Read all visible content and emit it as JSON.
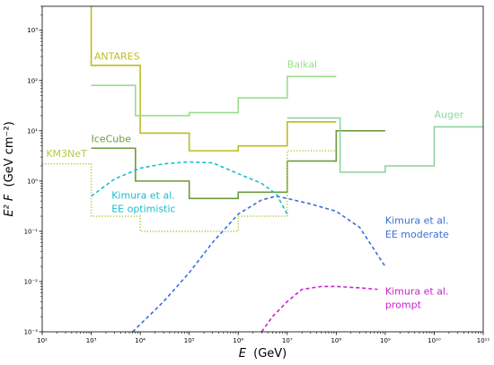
{
  "chart_data": {
    "type": "line",
    "xlabel_math": "E",
    "xlabel_unit": "(GeV)",
    "ylabel_math": "E² F",
    "ylabel_unit": "(GeV cm⁻²)",
    "xscale": "log",
    "yscale": "log",
    "xlim": [
      100,
      100000000000
    ],
    "ylim": [
      0.001,
      3000
    ],
    "x_ticks": [
      {
        "value": 100,
        "label": "10²"
      },
      {
        "value": 1000,
        "label": "10³"
      },
      {
        "value": 10000,
        "label": "10⁴"
      },
      {
        "value": 100000,
        "label": "10⁵"
      },
      {
        "value": 1000000,
        "label": "10⁶"
      },
      {
        "value": 10000000,
        "label": "10⁷"
      },
      {
        "value": 100000000,
        "label": "10⁸"
      },
      {
        "value": 1000000000,
        "label": "10⁹"
      },
      {
        "value": 10000000000,
        "label": "10¹⁰"
      },
      {
        "value": 100000000000,
        "label": "10¹¹"
      }
    ],
    "y_ticks": [
      {
        "value": 0.001,
        "label": "10⁻³"
      },
      {
        "value": 0.01,
        "label": "10⁻²"
      },
      {
        "value": 0.1,
        "label": "10⁻¹"
      },
      {
        "value": 1,
        "label": "10⁰"
      },
      {
        "value": 10,
        "label": "10¹"
      },
      {
        "value": 100,
        "label": "10²"
      },
      {
        "value": 1000,
        "label": "10³"
      }
    ],
    "series": [
      {
        "name": "ANTARES",
        "style": "solid",
        "color": "#bcbd22",
        "points": [
          [
            1000,
            3000
          ],
          [
            1000,
            200
          ],
          [
            10000,
            200
          ],
          [
            10000,
            9
          ],
          [
            100000,
            9
          ],
          [
            100000,
            4
          ],
          [
            1000000,
            4
          ],
          [
            1000000,
            5
          ],
          [
            10000000,
            5
          ],
          [
            10000000,
            15
          ],
          [
            100000000,
            15
          ]
        ]
      },
      {
        "name": "Baikal",
        "style": "solid",
        "color": "#98df8a",
        "points": [
          [
            1000,
            80
          ],
          [
            8000,
            80
          ],
          [
            8000,
            20
          ],
          [
            100000,
            20
          ],
          [
            100000,
            23
          ],
          [
            1000000,
            23
          ],
          [
            1000000,
            45
          ],
          [
            10000000,
            45
          ],
          [
            10000000,
            120
          ],
          [
            100000000,
            120
          ]
        ]
      },
      {
        "name": "IceCube",
        "style": "solid",
        "color": "#6b9a3c",
        "points": [
          [
            1000,
            4.5
          ],
          [
            8000,
            4.5
          ],
          [
            8000,
            1
          ],
          [
            100000,
            1
          ],
          [
            100000,
            0.45
          ],
          [
            1000000,
            0.45
          ],
          [
            1000000,
            0.6
          ],
          [
            10000000,
            0.6
          ],
          [
            10000000,
            2.5
          ],
          [
            100000000,
            2.5
          ],
          [
            100000000,
            10
          ],
          [
            1000000000,
            10
          ]
        ]
      },
      {
        "name": "KM3NeT",
        "style": "dotted",
        "color": "#b5cc3e",
        "points": [
          [
            100,
            2.2
          ],
          [
            1000,
            2.2
          ],
          [
            1000,
            0.2
          ],
          [
            10000,
            0.2
          ],
          [
            10000,
            0.1
          ],
          [
            1000000,
            0.1
          ],
          [
            1000000,
            0.2
          ],
          [
            10000000,
            0.2
          ],
          [
            10000000,
            4
          ],
          [
            100000000,
            4
          ]
        ]
      },
      {
        "name": "Auger",
        "style": "solid",
        "color": "#8ed4a0",
        "points": [
          [
            10000000,
            18
          ],
          [
            120000000,
            18
          ],
          [
            120000000,
            1.5
          ],
          [
            1000000000,
            1.5
          ],
          [
            1000000000,
            2
          ],
          [
            10000000000,
            2
          ],
          [
            10000000000,
            12
          ],
          [
            100000000000,
            12
          ]
        ]
      },
      {
        "name": "Kimura et al. EE optimistic",
        "style": "dashed",
        "color": "#17becf",
        "points": [
          [
            1000,
            0.5
          ],
          [
            3000,
            1.1
          ],
          [
            10000,
            1.8
          ],
          [
            30000,
            2.2
          ],
          [
            100000,
            2.4
          ],
          [
            300000,
            2.3
          ],
          [
            1000000,
            1.4
          ],
          [
            3000000,
            0.9
          ],
          [
            6000000,
            0.55
          ],
          [
            10000000,
            0.22
          ]
        ]
      },
      {
        "name": "Kimura et al. EE moderate",
        "style": "dashed",
        "color": "#3a6fd8",
        "points": [
          [
            7000,
            0.001
          ],
          [
            30000,
            0.004
          ],
          [
            100000,
            0.015
          ],
          [
            300000,
            0.06
          ],
          [
            1000000,
            0.22
          ],
          [
            3000000,
            0.42
          ],
          [
            6000000,
            0.5
          ],
          [
            10000000,
            0.45
          ],
          [
            30000000,
            0.35
          ],
          [
            100000000,
            0.25
          ],
          [
            300000000,
            0.12
          ],
          [
            1000000000,
            0.02
          ]
        ]
      },
      {
        "name": "Kimura et al. prompt",
        "style": "dashed",
        "color": "#cc22cc",
        "points": [
          [
            3000000,
            0.001
          ],
          [
            5000000,
            0.002
          ],
          [
            10000000,
            0.004
          ],
          [
            20000000,
            0.007
          ],
          [
            50000000,
            0.008
          ],
          [
            100000000,
            0.008
          ],
          [
            300000000,
            0.0075
          ],
          [
            700000000,
            0.007
          ]
        ]
      }
    ],
    "annotations": [
      {
        "text": "ANTARES",
        "color": "#bcbd22",
        "x": 1150,
        "y": 260
      },
      {
        "text": "Baikal",
        "color": "#98df8a",
        "x": 10000000,
        "y": 180
      },
      {
        "text": "IceCube",
        "color": "#6b9a3c",
        "x": 1000,
        "y": 6
      },
      {
        "text": "KM3NeT",
        "color": "#b5cc3e",
        "x": 120,
        "y": 3
      },
      {
        "text": "Auger",
        "color": "#8ed4a0",
        "x": 10000000000,
        "y": 18
      },
      {
        "text": "Kimura et al.",
        "color": "#17becf",
        "x": 2600,
        "y": 0.45
      },
      {
        "text": "EE optimistic",
        "color": "#17becf",
        "x": 2600,
        "y": 0.24
      },
      {
        "text": "Kimura et al.",
        "color": "#3a6fd8",
        "x": 1000000000,
        "y": 0.14
      },
      {
        "text": "EE moderate",
        "color": "#3a6fd8",
        "x": 1000000000,
        "y": 0.075
      },
      {
        "text": "Kimura et al.",
        "color": "#cc22cc",
        "x": 1000000000,
        "y": 0.0055
      },
      {
        "text": "prompt",
        "color": "#cc22cc",
        "x": 1000000000,
        "y": 0.003
      }
    ]
  }
}
